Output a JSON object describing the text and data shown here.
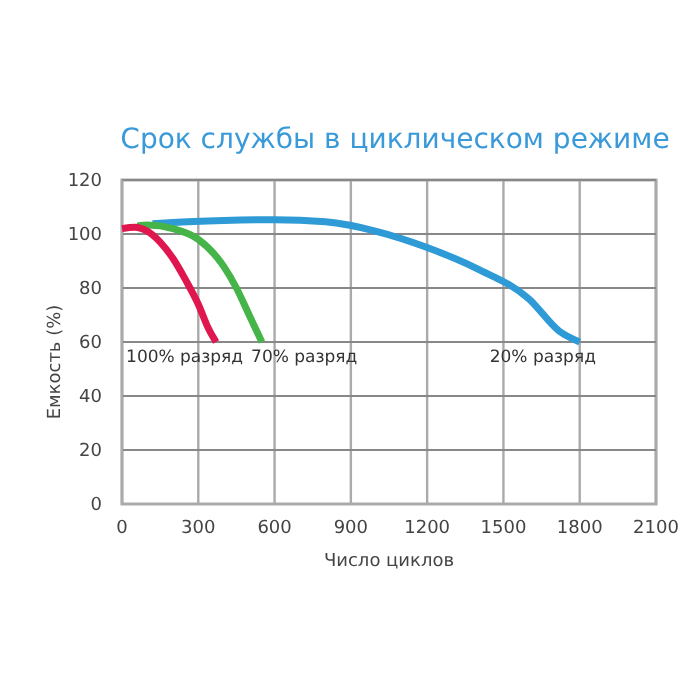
{
  "chart_data": {
    "type": "line",
    "title": "Срок службы в циклическом режиме",
    "xlabel": "Число циклов",
    "ylabel": "Емкость (%)",
    "xlim": [
      0,
      2100
    ],
    "xticks": [
      0,
      300,
      600,
      900,
      1200,
      1500,
      1800,
      2100
    ],
    "ylim": [
      0,
      120
    ],
    "yticks": [
      0,
      20,
      40,
      60,
      80,
      100,
      120
    ],
    "grid": true,
    "marker": "none",
    "line_style": "solid",
    "series": [
      {
        "name": "100% разряд",
        "color": "#e0174f",
        "x": [
          0,
          50,
          100,
          150,
          200,
          250,
          300,
          340,
          370
        ],
        "values": [
          102,
          102.5,
          101,
          97,
          91,
          83,
          74,
          65,
          60
        ]
      },
      {
        "name": "70% разряд",
        "color": "#45b549",
        "x": [
          60,
          100,
          200,
          300,
          400,
          450,
          500,
          530,
          550
        ],
        "values": [
          103,
          103.3,
          102,
          98,
          88,
          80,
          70,
          64,
          60
        ]
      },
      {
        "name": "20% разряд",
        "color": "#2e9ad6",
        "x": [
          120,
          200,
          400,
          600,
          800,
          1000,
          1200,
          1400,
          1600,
          1720,
          1800
        ],
        "values": [
          103.8,
          104.3,
          105,
          105.3,
          104.5,
          101,
          95,
          87,
          76,
          64,
          60
        ]
      }
    ]
  }
}
